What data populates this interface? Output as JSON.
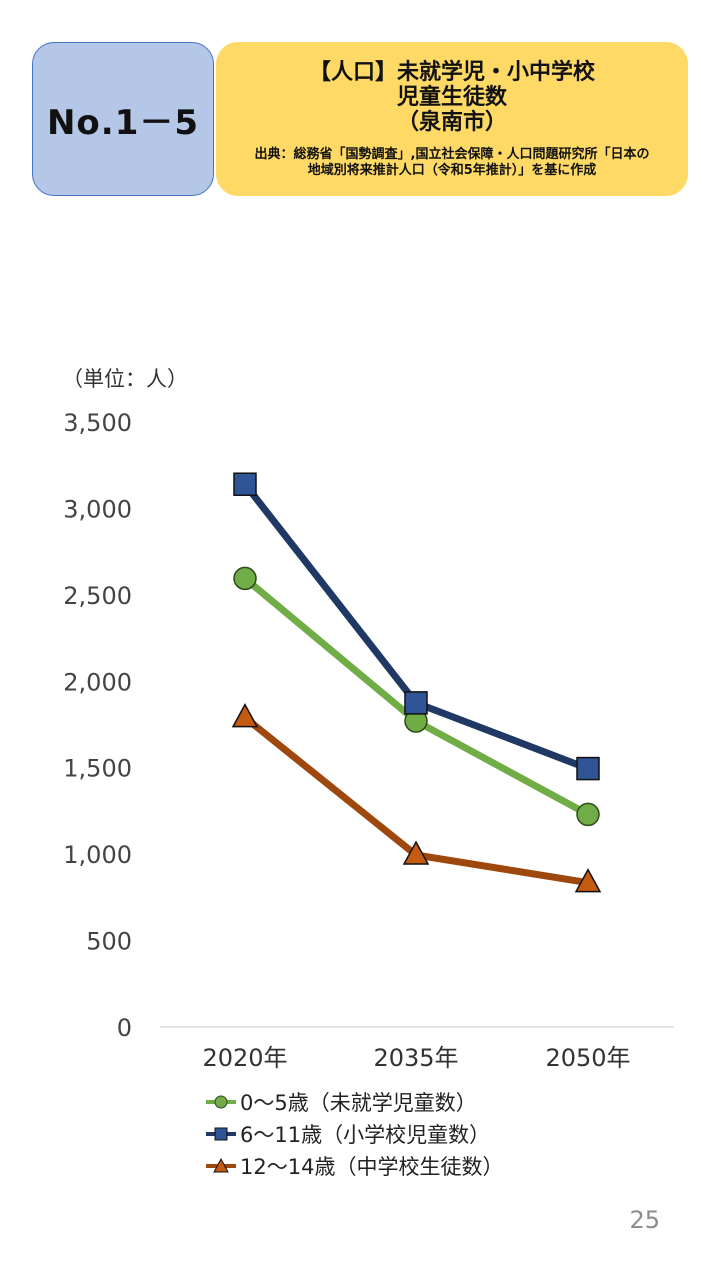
{
  "header": {
    "number_label": "No.1－5",
    "title_line1": "【人口】未就学児・小中学校",
    "title_line2": "児童生徒数",
    "title_line3": "（泉南市）",
    "source_line1": "出典：総務省「国勢調査」,国立社会保障・人口問題研究所「日本の",
    "source_line2": "地域別将来推計人口（令和5年推計）」を基に作成"
  },
  "chart_data": {
    "type": "line",
    "unit_label": "（単位：人）",
    "categories": [
      "2020年",
      "2035年",
      "2050年"
    ],
    "ylim": [
      0,
      3500
    ],
    "yticks": [
      0,
      500,
      1000,
      1500,
      2000,
      2500,
      3000,
      3500
    ],
    "ytick_labels": [
      "0",
      "500",
      "1,000",
      "1,500",
      "2,000",
      "2,500",
      "3,000",
      "3,500"
    ],
    "grid": false,
    "legend_position": "bottom",
    "series": [
      {
        "name": "0～5歳（未就学児童数）",
        "values": [
          2595,
          1770,
          1230
        ],
        "color": "#70ad47",
        "marker": "circle"
      },
      {
        "name": "6～11歳（小学校児童数）",
        "values": [
          3140,
          1875,
          1495
        ],
        "color": "#203864",
        "marker_fill": "#2f5597",
        "marker": "square"
      },
      {
        "name": "12～14歳（中学校生徒数）",
        "values": [
          1790,
          995,
          835
        ],
        "color": "#9e480e",
        "marker_fill": "#c55a11",
        "marker": "triangle"
      }
    ]
  },
  "page_number": "25"
}
